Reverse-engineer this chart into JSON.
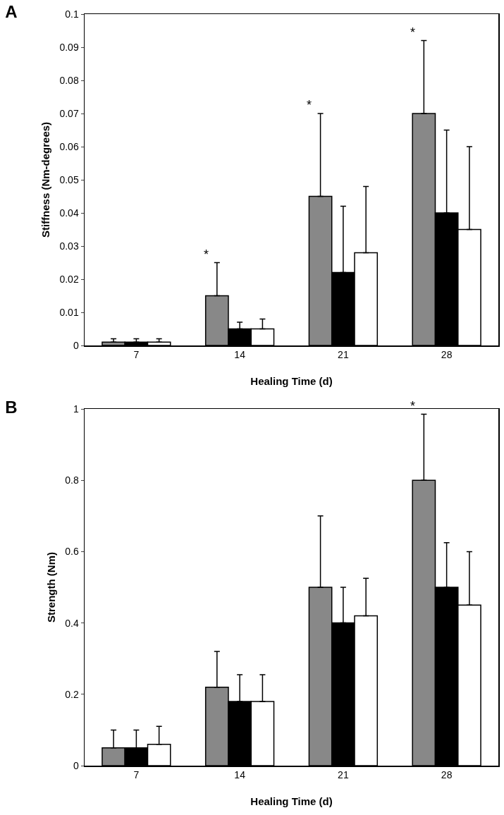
{
  "chart_data": [
    {
      "type": "bar",
      "title": "A",
      "xlabel": "Healing Time (d)",
      "ylabel": "Stiffness (Nm-degrees)",
      "categories": [
        "7",
        "14",
        "21",
        "28"
      ],
      "series": [
        {
          "color": "#888888",
          "values": [
            0.001,
            0.015,
            0.045,
            0.07
          ],
          "errors": [
            [
              0.001,
              0.002
            ],
            [
              0.015,
              0.025
            ],
            [
              0.045,
              0.07
            ],
            [
              0.07,
              0.092
            ]
          ]
        },
        {
          "color": "#000000",
          "values": [
            0.001,
            0.005,
            0.022,
            0.04
          ],
          "errors": [
            [
              0.001,
              0.002
            ],
            [
              0.005,
              0.007
            ],
            [
              0.022,
              0.042
            ],
            [
              0.04,
              0.065
            ]
          ]
        },
        {
          "color": "#ffffff",
          "values": [
            0.001,
            0.005,
            0.028,
            0.035
          ],
          "errors": [
            [
              0.001,
              0.002
            ],
            [
              0.005,
              0.008
            ],
            [
              0.028,
              0.048
            ],
            [
              0.035,
              0.06
            ]
          ]
        }
      ],
      "ylim": [
        0,
        0.1
      ],
      "yticks": [
        0,
        0.01,
        0.02,
        0.03,
        0.04,
        0.05,
        0.06,
        0.07,
        0.08,
        0.09,
        0.1
      ],
      "grid": false,
      "annotations": [
        "*",
        "*",
        "*"
      ]
    },
    {
      "type": "bar",
      "title": "B",
      "xlabel": "Healing Time (d)",
      "ylabel": "Strength (Nm)",
      "categories": [
        "7",
        "14",
        "21",
        "28"
      ],
      "series": [
        {
          "color": "#888888",
          "values": [
            0.05,
            0.22,
            0.5,
            0.8
          ],
          "errors": [
            [
              0.05,
              0.1
            ],
            [
              0.22,
              0.32
            ],
            [
              0.5,
              0.7
            ],
            [
              0.8,
              0.985
            ]
          ]
        },
        {
          "color": "#000000",
          "values": [
            0.05,
            0.18,
            0.4,
            0.5
          ],
          "errors": [
            [
              0.05,
              0.1
            ],
            [
              0.18,
              0.255
            ],
            [
              0.4,
              0.5
            ],
            [
              0.5,
              0.625
            ]
          ]
        },
        {
          "color": "#ffffff",
          "values": [
            0.06,
            0.18,
            0.42,
            0.45
          ],
          "errors": [
            [
              0.06,
              0.11
            ],
            [
              0.18,
              0.255
            ],
            [
              0.42,
              0.525
            ],
            [
              0.45,
              0.6
            ]
          ]
        }
      ],
      "ylim": [
        0,
        1
      ],
      "yticks": [
        0,
        0.2,
        0.4,
        0.6,
        0.8,
        1
      ],
      "grid": false,
      "annotations": [
        "*"
      ]
    }
  ]
}
